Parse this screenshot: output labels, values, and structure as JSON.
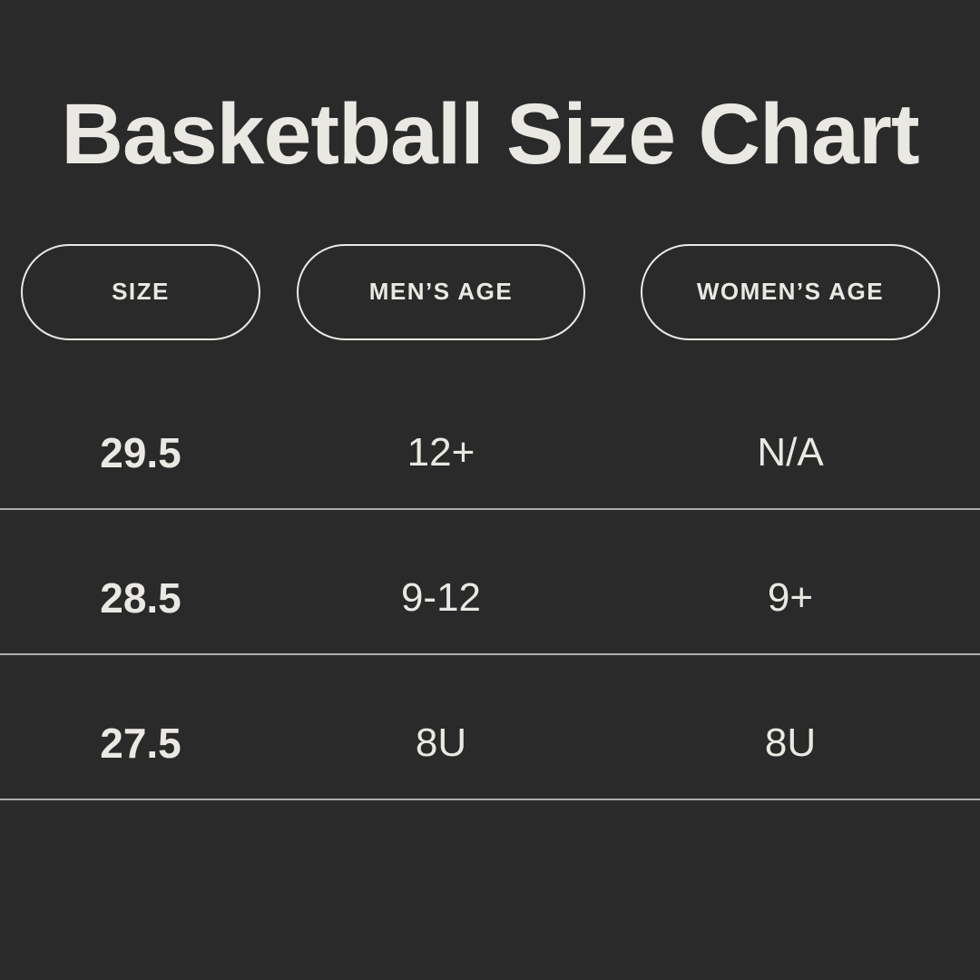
{
  "title": "Basketball Size Chart",
  "colors": {
    "background": "#2a2a2a",
    "text": "#eae8e2",
    "divider": "#dcdad4"
  },
  "chart_data": {
    "type": "table",
    "title": "Basketball Size Chart",
    "columns": [
      "SIZE",
      "MEN’S AGE",
      "WOMEN’S AGE"
    ],
    "rows": [
      [
        "29.5",
        "12+",
        "N/A"
      ],
      [
        "28.5",
        "9-12",
        "9+"
      ],
      [
        "27.5",
        "8U",
        "8U"
      ]
    ]
  }
}
